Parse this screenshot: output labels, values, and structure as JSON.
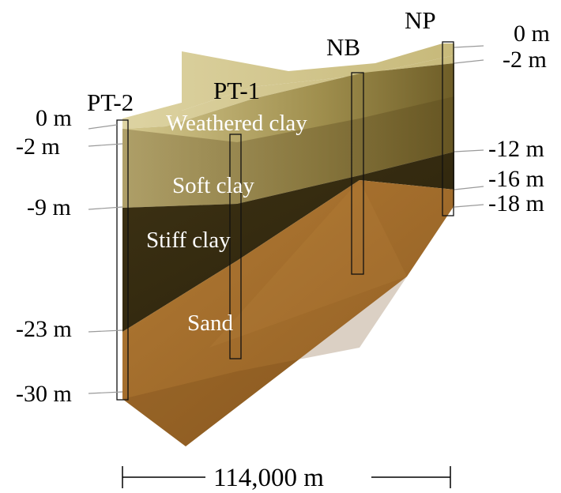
{
  "boreholes": {
    "pt2": "PT-2",
    "pt1": "PT-1",
    "nb": "NB",
    "np": "NP"
  },
  "layers": {
    "weathered_clay": "Weathered clay",
    "soft_clay": "Soft clay",
    "stiff_clay": "Stiff clay",
    "sand": "Sand"
  },
  "depths_left": {
    "d0": "0 m",
    "d2": "-2 m",
    "d9": "-9 m",
    "d23": "-23 m",
    "d30": "-30 m"
  },
  "depths_right": {
    "d0": "0 m",
    "d2": "-2 m",
    "d12": "-12 m",
    "d16": "-16 m",
    "d18": "-18 m"
  },
  "scale": {
    "length": "114,000 m"
  },
  "colors": {
    "weathered_clay": "#d8cc95",
    "soft_clay": "#7d6b38",
    "stiff_clay": "#3a2f12",
    "sand": "#a8732f"
  }
}
